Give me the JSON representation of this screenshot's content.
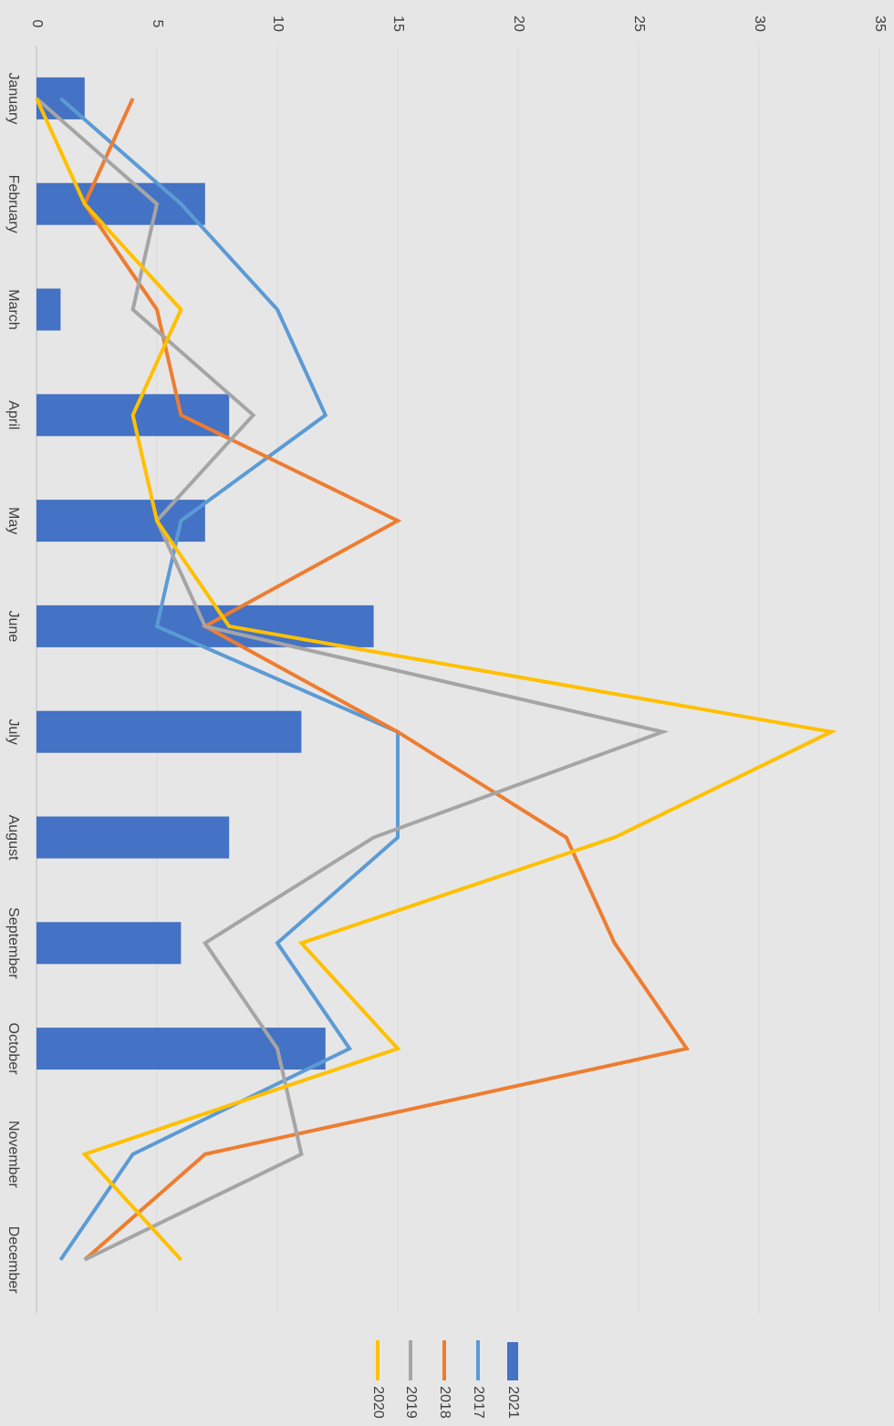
{
  "chart_data": {
    "type": "bar",
    "orientation": "rotated-90-clockwise",
    "categories": [
      "January",
      "February",
      "March",
      "April",
      "May",
      "June",
      "July",
      "August",
      "September",
      "October",
      "November",
      "December"
    ],
    "value_axis": {
      "min": 0,
      "max": 35,
      "step": 5,
      "ticks": [
        "0",
        "5",
        "10",
        "15",
        "20",
        "25",
        "30",
        "35"
      ]
    },
    "grid": true,
    "legend_position": "bottom",
    "bar_series": [
      {
        "name": "2021",
        "color": "#4472c4",
        "values": [
          2,
          7,
          1,
          8,
          7,
          14,
          11,
          8,
          6,
          12,
          null,
          null
        ]
      }
    ],
    "line_series": [
      {
        "name": "2017",
        "color": "#5b9bd5",
        "values": [
          1,
          6,
          10,
          12,
          6,
          5,
          15,
          15,
          10,
          13,
          4,
          1
        ]
      },
      {
        "name": "2018",
        "color": "#ed7d31",
        "values": [
          4,
          2,
          5,
          6,
          15,
          7,
          15,
          22,
          24,
          27,
          7,
          2
        ]
      },
      {
        "name": "2019",
        "color": "#a5a5a5",
        "values": [
          0,
          5,
          4,
          9,
          5,
          7,
          26,
          14,
          7,
          10,
          11,
          2
        ]
      },
      {
        "name": "2020",
        "color": "#ffc000",
        "values": [
          0,
          2,
          6,
          4,
          5,
          8,
          33,
          24,
          11,
          15,
          2,
          6
        ]
      }
    ],
    "legend": [
      {
        "name": "2021",
        "kind": "bar",
        "color": "#4472c4"
      },
      {
        "name": "2017",
        "kind": "line",
        "color": "#5b9bd5"
      },
      {
        "name": "2018",
        "kind": "line",
        "color": "#ed7d31"
      },
      {
        "name": "2019",
        "kind": "line",
        "color": "#a5a5a5"
      },
      {
        "name": "2020",
        "kind": "line",
        "color": "#ffc000"
      }
    ]
  }
}
